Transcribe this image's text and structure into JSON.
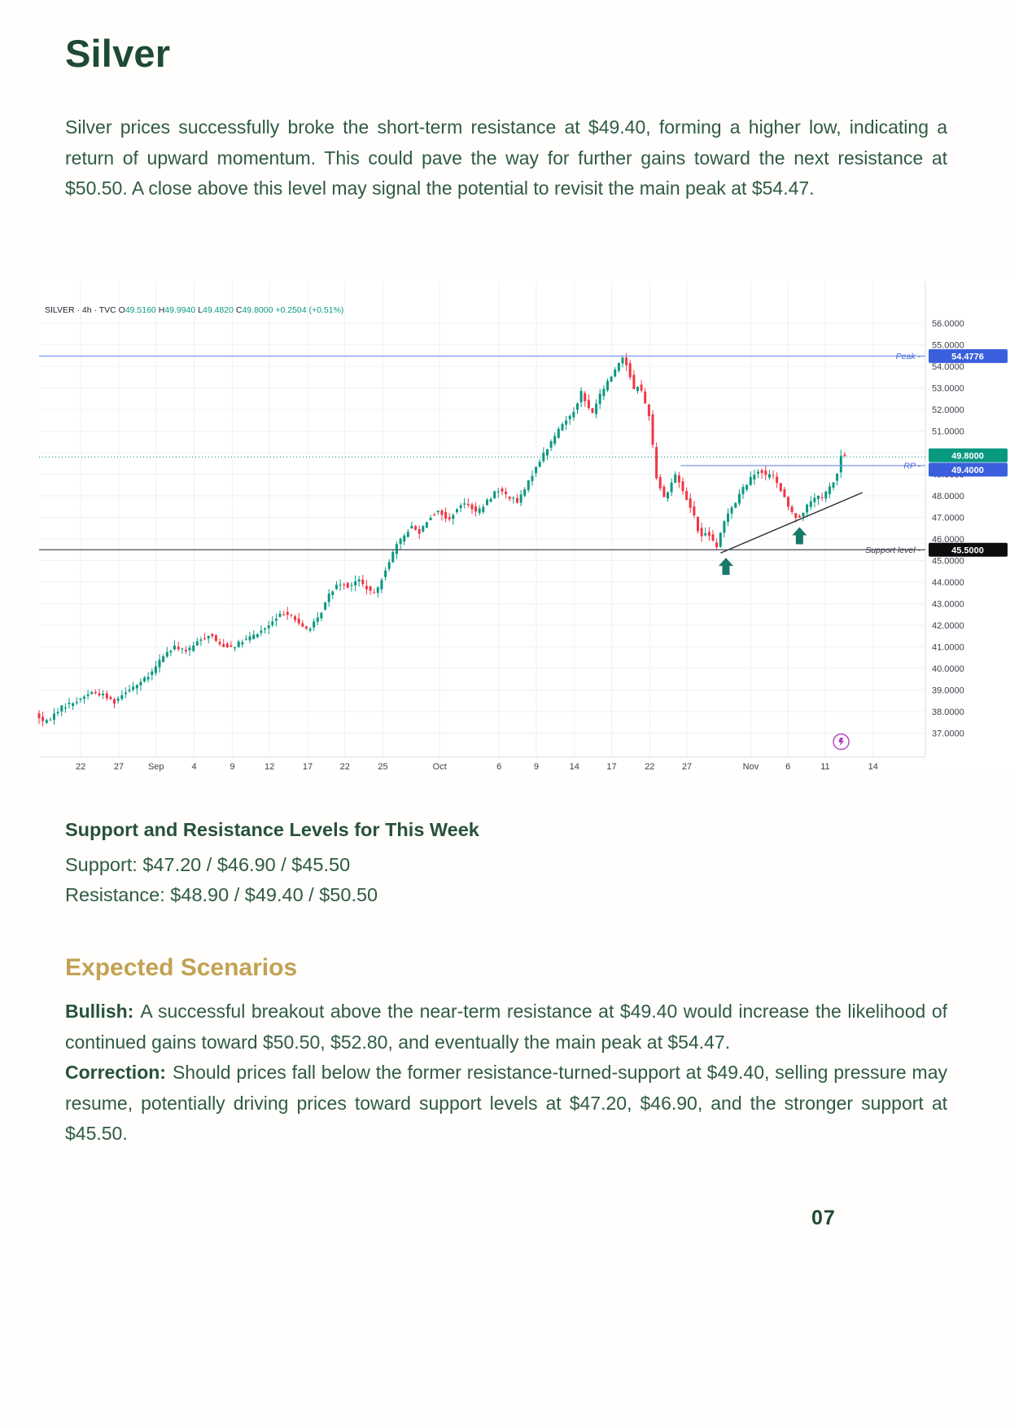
{
  "page": {
    "title": "Silver",
    "intro": "Silver prices successfully broke the short-term resistance at $49.40, forming a higher low, indicating a return of upward momentum. This could pave the way for further gains toward the next resistance at $50.50. A close above this level may signal the potential to revisit the main peak at $54.47.",
    "page_number": "07"
  },
  "levels": {
    "heading": "Support and Resistance Levels for This Week",
    "support": "Support: $47.20 / $46.90 / $45.50",
    "resistance": "Resistance: $48.90 / $49.40 / $50.50"
  },
  "scenarios": {
    "heading": "Expected Scenarios",
    "bullish_label": "Bullish:",
    "bullish_text": "A successful breakout above the near-term resistance at $49.40 would increase the likelihood of continued gains toward $50.50, $52.80, and eventually the main peak at $54.47.",
    "correction_label": "Correction:",
    "correction_text": "Should prices fall below the former resistance-turned-support at $49.40, selling pressure may resume, potentially driving prices toward support levels at $47.20, $46.90, and the stronger support at $45.50."
  },
  "chart_data": {
    "type": "candlestick",
    "symbol_line": {
      "header": "SILVER · 4h · TVC",
      "pairs": [
        [
          "O",
          "49.5160"
        ],
        [
          "H",
          "49.9940"
        ],
        [
          "L",
          "49.4820"
        ],
        [
          "C",
          "49.8000"
        ]
      ],
      "change": "+0.2504 (+0.51%)"
    },
    "y_axis": {
      "max": 56,
      "min": 37,
      "step": 1,
      "decimals": 4
    },
    "x_ticks": [
      [
        "22",
        0.047
      ],
      [
        "27",
        0.09
      ],
      [
        "Sep",
        0.132
      ],
      [
        "4",
        0.175
      ],
      [
        "9",
        0.218
      ],
      [
        "12",
        0.26
      ],
      [
        "17",
        0.303
      ],
      [
        "22",
        0.345
      ],
      [
        "25",
        0.388
      ],
      [
        "Oct",
        0.452
      ],
      [
        "6",
        0.519
      ],
      [
        "9",
        0.561
      ],
      [
        "14",
        0.604
      ],
      [
        "17",
        0.646
      ],
      [
        "22",
        0.689
      ],
      [
        "27",
        0.731
      ],
      [
        "Nov",
        0.803
      ],
      [
        "6",
        0.845
      ],
      [
        "11",
        0.887
      ],
      [
        "14",
        0.941
      ]
    ],
    "price_levels": [
      {
        "name": "peak",
        "label": "Peak -",
        "value": 54.4776,
        "box": "54.4776",
        "line_color": "#7c97ee",
        "label_color": "#3f63dd",
        "box_color": "#3a5fdd",
        "dotted": false,
        "from": 0,
        "box_dy": 0
      },
      {
        "name": "last-price",
        "label": "",
        "value": 49.8,
        "box": "49.8000",
        "line_color": "#0a9a81",
        "label_color": "#0a9a81",
        "box_color": "#089981",
        "dotted": true,
        "from": 0,
        "box_dy": -2
      },
      {
        "name": "rp",
        "label": "RP -",
        "value": 49.4,
        "box": "49.4000",
        "line_color": "#7c97ee",
        "label_color": "#3f63dd",
        "box_color": "#3a5fdd",
        "dotted": false,
        "from": 0.724,
        "box_dy": 5
      },
      {
        "name": "support",
        "label": "Support level -",
        "value": 45.5,
        "box": "45.5000",
        "line_color": "#4a4d57",
        "label_color": "#33363f",
        "box_color": "#0c0c0f",
        "dotted": false,
        "from": 0,
        "box_dy": 0
      }
    ],
    "trendline": {
      "f1": 0.769,
      "p1": 45.35,
      "f2": 0.929,
      "p2": 48.15,
      "color": "#2b2b2b"
    },
    "arrows": [
      {
        "f": 0.775,
        "tip": 45.28
      },
      {
        "f": 0.858,
        "tip": 46.7
      }
    ],
    "arrow_color": "#17796a",
    "boost_icon": {
      "f": 0.905,
      "p": 36.6,
      "color": "#b23bbf"
    },
    "up_color": "#089981",
    "down_color": "#f23645",
    "grid_color": "#eef0f5",
    "axis_color": "#d9dce3",
    "tick_text_color": "#3c3f4a",
    "candles": {
      "count": 215,
      "end_f": 0.909,
      "noise": 0.18,
      "wick": 0.28,
      "seed": 7
    },
    "price_path": [
      [
        0.0,
        37.9
      ],
      [
        0.011,
        37.45
      ],
      [
        0.029,
        38.2
      ],
      [
        0.048,
        38.5
      ],
      [
        0.062,
        38.9
      ],
      [
        0.075,
        38.8
      ],
      [
        0.089,
        38.45
      ],
      [
        0.103,
        39.0
      ],
      [
        0.117,
        39.3
      ],
      [
        0.13,
        39.7
      ],
      [
        0.144,
        40.6
      ],
      [
        0.158,
        41.0
      ],
      [
        0.172,
        40.8
      ],
      [
        0.185,
        41.3
      ],
      [
        0.197,
        41.6
      ],
      [
        0.208,
        41.1
      ],
      [
        0.222,
        41.0
      ],
      [
        0.236,
        41.3
      ],
      [
        0.25,
        41.6
      ],
      [
        0.264,
        42.0
      ],
      [
        0.277,
        42.5
      ],
      [
        0.287,
        42.6
      ],
      [
        0.298,
        42.0
      ],
      [
        0.308,
        41.8
      ],
      [
        0.319,
        42.3
      ],
      [
        0.331,
        43.4
      ],
      [
        0.342,
        44.0
      ],
      [
        0.353,
        43.8
      ],
      [
        0.365,
        44.1
      ],
      [
        0.374,
        43.7
      ],
      [
        0.383,
        43.4
      ],
      [
        0.395,
        44.6
      ],
      [
        0.406,
        45.6
      ],
      [
        0.415,
        46.1
      ],
      [
        0.424,
        46.6
      ],
      [
        0.433,
        46.3
      ],
      [
        0.444,
        47.0
      ],
      [
        0.456,
        47.3
      ],
      [
        0.466,
        46.8
      ],
      [
        0.475,
        47.4
      ],
      [
        0.487,
        47.7
      ],
      [
        0.498,
        47.2
      ],
      [
        0.507,
        47.6
      ],
      [
        0.521,
        48.3
      ],
      [
        0.533,
        48.0
      ],
      [
        0.544,
        47.7
      ],
      [
        0.555,
        48.5
      ],
      [
        0.564,
        49.3
      ],
      [
        0.573,
        49.9
      ],
      [
        0.585,
        50.7
      ],
      [
        0.594,
        51.3
      ],
      [
        0.603,
        51.7
      ],
      [
        0.61,
        52.1
      ],
      [
        0.615,
        52.9
      ],
      [
        0.622,
        52.2
      ],
      [
        0.628,
        51.8
      ],
      [
        0.635,
        52.5
      ],
      [
        0.643,
        53.1
      ],
      [
        0.649,
        53.5
      ],
      [
        0.656,
        54.0
      ],
      [
        0.663,
        54.45
      ],
      [
        0.669,
        53.9
      ],
      [
        0.675,
        52.9
      ],
      [
        0.681,
        53.2
      ],
      [
        0.688,
        52.3
      ],
      [
        0.693,
        51.7
      ],
      [
        0.7,
        49.0
      ],
      [
        0.705,
        48.4
      ],
      [
        0.711,
        47.8
      ],
      [
        0.716,
        48.5
      ],
      [
        0.723,
        49.0
      ],
      [
        0.729,
        48.4
      ],
      [
        0.735,
        47.8
      ],
      [
        0.741,
        47.4
      ],
      [
        0.747,
        46.5
      ],
      [
        0.753,
        46.0
      ],
      [
        0.758,
        46.4
      ],
      [
        0.764,
        45.9
      ],
      [
        0.769,
        45.55
      ],
      [
        0.775,
        46.6
      ],
      [
        0.782,
        47.3
      ],
      [
        0.79,
        47.7
      ],
      [
        0.796,
        48.2
      ],
      [
        0.803,
        48.6
      ],
      [
        0.81,
        48.95
      ],
      [
        0.817,
        49.25
      ],
      [
        0.824,
        48.9
      ],
      [
        0.83,
        49.1
      ],
      [
        0.836,
        48.6
      ],
      [
        0.842,
        48.2
      ],
      [
        0.848,
        47.6
      ],
      [
        0.854,
        47.2
      ],
      [
        0.86,
        46.95
      ],
      [
        0.867,
        47.3
      ],
      [
        0.874,
        47.7
      ],
      [
        0.881,
        48.0
      ],
      [
        0.887,
        47.8
      ],
      [
        0.893,
        48.2
      ],
      [
        0.898,
        48.5
      ],
      [
        0.904,
        48.9
      ],
      [
        0.909,
        49.85
      ]
    ]
  }
}
